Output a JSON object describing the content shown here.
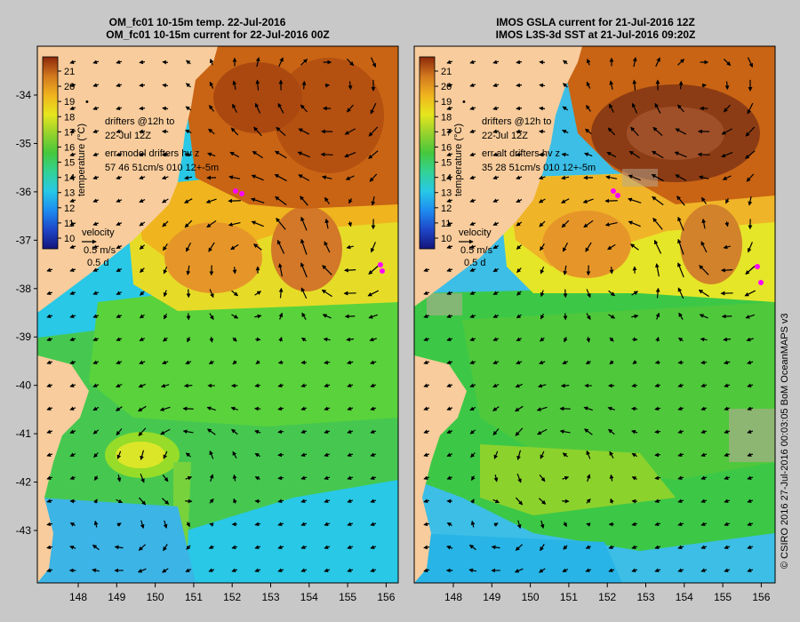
{
  "panels": [
    {
      "id": "model",
      "title_line1": "OM_fc01 10-15m temp. 22-Jul-2016",
      "title_line2": "OM_fc01 10-15m current for 22-Jul-2016 00Z",
      "legend_drifters_1": "drifters @12h to",
      "legend_drifters_2": "22-Jul 12Z",
      "legend_err_1": "err model drifters hv z",
      "legend_err_2": "57 46 51cm/s 010 12+-5m"
    },
    {
      "id": "obs",
      "title_line1": "IMOS GSLA current for 21-Jul-2016 12Z",
      "title_line2": "IMOS L3S-3d SST at 21-Jul-2016 09:20Z",
      "legend_drifters_1": "drifters @12h to",
      "legend_drifters_2": "22-Jul 12Z",
      "legend_err_1": "err alt drifters hv z",
      "legend_err_2": "35 28 51cm/s 010 12+-5m"
    }
  ],
  "colorbar": {
    "label": "temperature (°C)",
    "ticks": [
      "21",
      "20",
      "19",
      "18",
      "17",
      "16",
      "15",
      "14",
      "13",
      "12",
      "11",
      "10"
    ]
  },
  "velocity_key": {
    "title": "velocity",
    "speed": "0.5 m/s",
    "duration": "0.5 d"
  },
  "axes": {
    "lat_ticks": [
      "-34",
      "-35",
      "-36",
      "-37",
      "-38",
      "-39",
      "-40",
      "-41",
      "-42",
      "-43"
    ],
    "lon_ticks": [
      "148",
      "149",
      "150",
      "151",
      "152",
      "153",
      "154",
      "155",
      "156"
    ]
  },
  "credit": "© CSIRO 2016  27-Jul-2016 00:03:05 BoM OceanMAPS v3",
  "colors": {
    "land": "#f8cc9c",
    "frame_bg": "#c8c8c8",
    "drifter": "#ff00ff",
    "warm": "#c86414",
    "cool": "#32c8e6"
  }
}
